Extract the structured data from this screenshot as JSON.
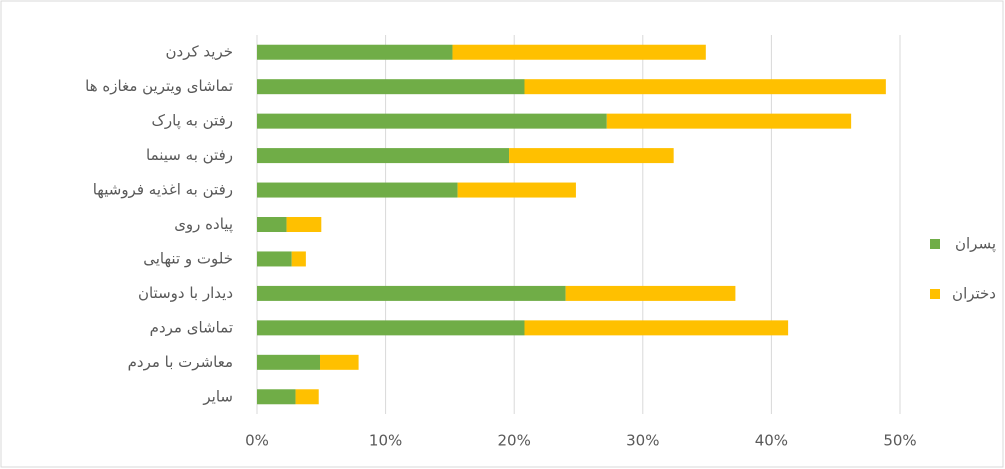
{
  "chart_data": {
    "type": "stacked_bar_horizontal",
    "categories": [
      "خرید کردن",
      "تماشای ویترین مغازه ها",
      "رفتن به پارک",
      "رفتن به سینما",
      "رفتن به اغذیه فروشیها",
      "پیاده روی",
      "خلوت و تنهایی",
      "دیدار با دوستان",
      "تماشای مردم",
      "معاشرت با مردم",
      "سایر"
    ],
    "series": [
      {
        "name": "پسران",
        "color": "#70ad47",
        "values": [
          15.2,
          20.8,
          27.2,
          19.6,
          15.6,
          2.3,
          2.7,
          24.0,
          20.8,
          4.9,
          3.0
        ]
      },
      {
        "name": "دختران",
        "color": "#ffc000",
        "values": [
          19.7,
          28.1,
          19.0,
          12.8,
          9.2,
          2.7,
          1.1,
          13.2,
          20.5,
          3.0,
          1.8
        ]
      }
    ],
    "xlim": [
      0,
      50
    ],
    "xticks": [
      {
        "value": 0,
        "label": "0%"
      },
      {
        "value": 10,
        "label": "10%"
      },
      {
        "value": 20,
        "label": "20%"
      },
      {
        "value": 30,
        "label": "30%"
      },
      {
        "value": 40,
        "label": "40%"
      },
      {
        "value": 50,
        "label": "50%"
      }
    ],
    "grid": true,
    "legend_position": "right"
  }
}
